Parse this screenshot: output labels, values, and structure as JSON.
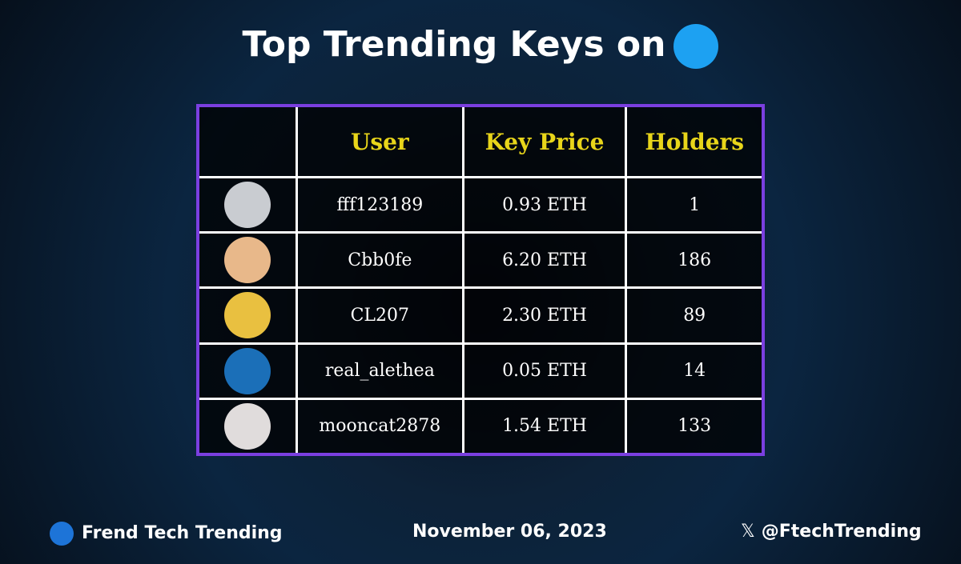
{
  "header": {
    "title": "Top Trending Keys on"
  },
  "table": {
    "columns": [
      "User",
      "Key Price",
      "Holders"
    ],
    "rows": [
      [
        "fff123189",
        "0.93 ETH",
        "1"
      ],
      [
        "Cbb0fe",
        "6.20 ETH",
        "186"
      ],
      [
        "CL207",
        "2.30 ETH",
        "89"
      ],
      [
        "real_alethea",
        "0.05 ETH",
        "14"
      ],
      [
        "mooncat2878",
        "1.54 ETH",
        "133"
      ]
    ]
  },
  "footer": {
    "brand": "Frend Tech Trending",
    "date": "November 06, 2023",
    "handle": "@FtechTrending"
  }
}
